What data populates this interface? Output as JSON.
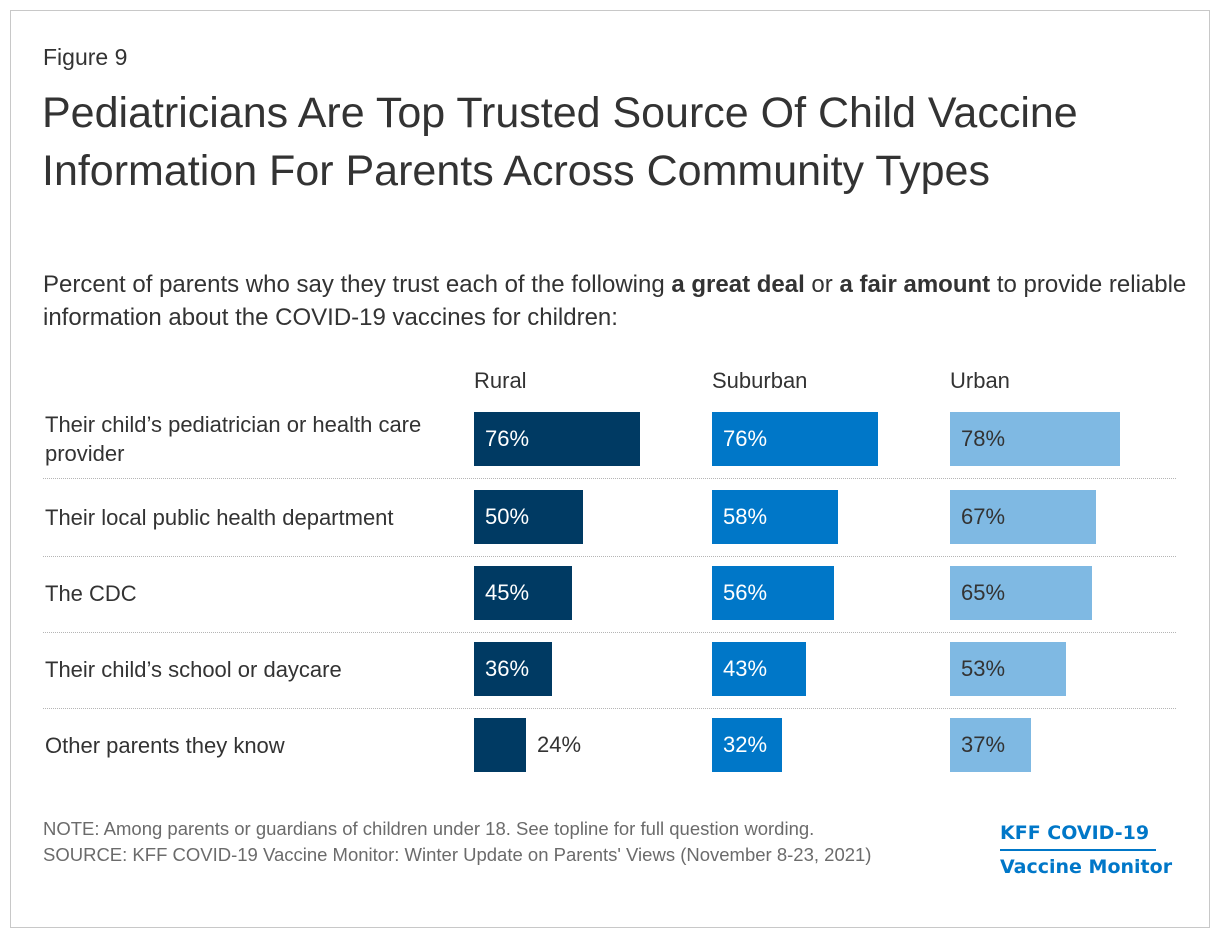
{
  "figure_label": "Figure 9",
  "colors": {
    "rural": "#003a63",
    "suburban": "#0077c8",
    "urban": "#7fb9e3",
    "text": "#333333",
    "note": "#6b6b6b"
  },
  "chart_data": {
    "type": "bar",
    "title": "Pediatricians Are Top Trusted Source Of Child Vaccine Information For Parents Across Community Types",
    "subtitle_parts": [
      "Percent of parents who say they trust each of the following ",
      "a great deal",
      " or ",
      "a fair amount",
      " to provide reliable information about the COVID-19 vaccines for children:"
    ],
    "categories": [
      "Their child’s pediatrician or health care provider",
      "Their local public health department",
      "The CDC",
      "Their child’s school or daycare",
      "Other parents they know"
    ],
    "series": [
      {
        "name": "Rural",
        "values": [
          76,
          50,
          45,
          36,
          24
        ]
      },
      {
        "name": "Suburban",
        "values": [
          76,
          58,
          56,
          43,
          32
        ]
      },
      {
        "name": "Urban",
        "values": [
          78,
          67,
          65,
          53,
          37
        ]
      }
    ],
    "value_suffix": "%"
  },
  "note": "NOTE: Among parents or guardians of children under 18. See topline for full question wording.",
  "source": "SOURCE: KFF COVID-19 Vaccine Monitor: Winter Update on Parents' Views (November 8-23, 2021)",
  "logo": {
    "line1": "KFF COVID-19",
    "line2": "Vaccine Monitor"
  }
}
